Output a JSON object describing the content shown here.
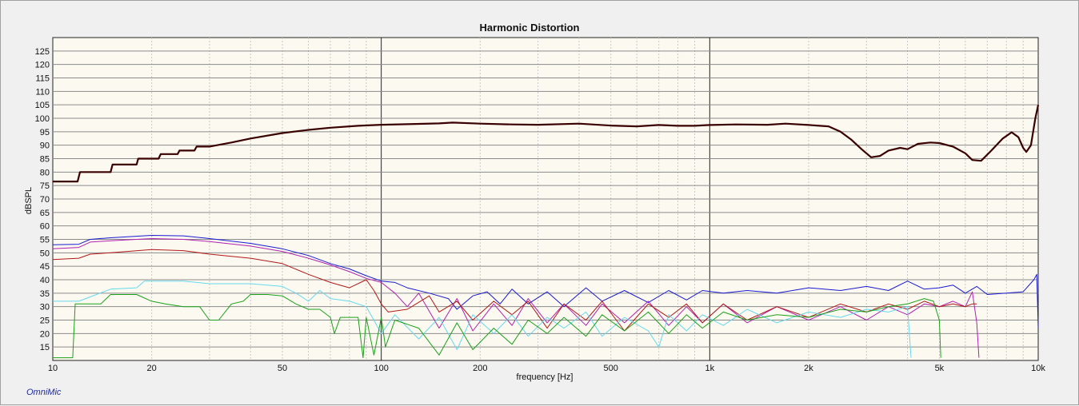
{
  "app": {
    "watermark": "OmniMic"
  },
  "chart_data": {
    "type": "line",
    "title": "Harmonic Distortion",
    "xlabel": "frequency [Hz]",
    "ylabel": "dBSPL",
    "xscale": "log",
    "xlim": [
      10,
      10000
    ],
    "ylim": [
      10,
      130
    ],
    "x_ticks": [
      10,
      20,
      50,
      100,
      200,
      500,
      1000,
      2000,
      5000,
      10000
    ],
    "x_tick_labels": [
      "10",
      "20",
      "50",
      "100",
      "200",
      "500",
      "1k",
      "2k",
      "5k",
      "10k"
    ],
    "y_ticks": [
      15,
      20,
      25,
      30,
      35,
      40,
      45,
      50,
      55,
      60,
      65,
      70,
      75,
      80,
      85,
      90,
      95,
      100,
      105,
      110,
      115,
      120,
      125
    ],
    "grid": true,
    "background": "#fcfaf0",
    "series": [
      {
        "color": "#3a0000",
        "width": 2.2,
        "points": [
          [
            10,
            76.5
          ],
          [
            11.9,
            76.5
          ],
          [
            12.1,
            80
          ],
          [
            15,
            80
          ],
          [
            15.2,
            82.8
          ],
          [
            18,
            82.8
          ],
          [
            18.2,
            85
          ],
          [
            21,
            85
          ],
          [
            21.3,
            86.7
          ],
          [
            24,
            86.7
          ],
          [
            24.3,
            88
          ],
          [
            27,
            88
          ],
          [
            27.4,
            89.5
          ],
          [
            30,
            89.5
          ],
          [
            35,
            91
          ],
          [
            40,
            92.5
          ],
          [
            50,
            94.5
          ],
          [
            60,
            95.7
          ],
          [
            70,
            96.5
          ],
          [
            85,
            97.2
          ],
          [
            100,
            97.6
          ],
          [
            120,
            97.8
          ],
          [
            150,
            98.1
          ],
          [
            165,
            98.4
          ],
          [
            200,
            98
          ],
          [
            250,
            97.7
          ],
          [
            300,
            97.6
          ],
          [
            400,
            98
          ],
          [
            500,
            97.3
          ],
          [
            600,
            97
          ],
          [
            700,
            97.5
          ],
          [
            800,
            97.2
          ],
          [
            900,
            97.2
          ],
          [
            1000,
            97.5
          ],
          [
            1200,
            97.7
          ],
          [
            1500,
            97.6
          ],
          [
            1700,
            98
          ],
          [
            2000,
            97.5
          ],
          [
            2300,
            97
          ],
          [
            2500,
            95
          ],
          [
            2700,
            92
          ],
          [
            2900,
            88.5
          ],
          [
            3100,
            85.5
          ],
          [
            3300,
            86
          ],
          [
            3500,
            88
          ],
          [
            3800,
            89
          ],
          [
            4000,
            88.5
          ],
          [
            4300,
            90.5
          ],
          [
            4700,
            91
          ],
          [
            5000,
            90.8
          ],
          [
            5500,
            89.5
          ],
          [
            6000,
            87
          ],
          [
            6300,
            84.5
          ],
          [
            6700,
            84.2
          ],
          [
            7200,
            88
          ],
          [
            7800,
            92.5
          ],
          [
            8300,
            94.8
          ],
          [
            8700,
            93
          ],
          [
            9000,
            89
          ],
          [
            9200,
            87.5
          ],
          [
            9500,
            90
          ],
          [
            9800,
            100
          ],
          [
            10000,
            105
          ]
        ]
      },
      {
        "color": "#1a1ad2",
        "width": 1,
        "points": [
          [
            10,
            53
          ],
          [
            12,
            53.2
          ],
          [
            13,
            55
          ],
          [
            15,
            55.6
          ],
          [
            20,
            56.5
          ],
          [
            25,
            56.3
          ],
          [
            30,
            55.3
          ],
          [
            40,
            53.5
          ],
          [
            50,
            51.5
          ],
          [
            60,
            49
          ],
          [
            70,
            46
          ],
          [
            80,
            44
          ],
          [
            90,
            41.5
          ],
          [
            100,
            39.5
          ],
          [
            110,
            39
          ],
          [
            120,
            37
          ],
          [
            140,
            35
          ],
          [
            160,
            33
          ],
          [
            170,
            29
          ],
          [
            190,
            34
          ],
          [
            210,
            35.5
          ],
          [
            230,
            31
          ],
          [
            250,
            36.5
          ],
          [
            280,
            31
          ],
          [
            320,
            35.5
          ],
          [
            360,
            30
          ],
          [
            420,
            37
          ],
          [
            470,
            32
          ],
          [
            550,
            36
          ],
          [
            650,
            31.5
          ],
          [
            750,
            36
          ],
          [
            850,
            32.5
          ],
          [
            950,
            36
          ],
          [
            1100,
            35
          ],
          [
            1300,
            36
          ],
          [
            1600,
            35
          ],
          [
            2000,
            37
          ],
          [
            2500,
            36
          ],
          [
            3000,
            37.5
          ],
          [
            3500,
            36
          ],
          [
            4000,
            39.5
          ],
          [
            4500,
            36.5
          ],
          [
            5000,
            37
          ],
          [
            5500,
            38
          ],
          [
            6000,
            35
          ],
          [
            6500,
            37.5
          ],
          [
            7000,
            34.5
          ],
          [
            8000,
            35
          ],
          [
            9000,
            35.5
          ],
          [
            9700,
            40
          ],
          [
            9900,
            42
          ],
          [
            10000,
            22
          ]
        ]
      },
      {
        "color": "#b020b0",
        "width": 1,
        "points": [
          [
            10,
            51.5
          ],
          [
            12,
            52
          ],
          [
            13,
            54
          ],
          [
            15,
            54.5
          ],
          [
            20,
            55.3
          ],
          [
            25,
            55
          ],
          [
            30,
            54.2
          ],
          [
            40,
            52.5
          ],
          [
            50,
            50.5
          ],
          [
            60,
            48
          ],
          [
            70,
            45.5
          ],
          [
            80,
            43
          ],
          [
            90,
            40.5
          ],
          [
            100,
            39
          ],
          [
            110,
            35
          ],
          [
            120,
            30
          ],
          [
            130,
            35
          ],
          [
            150,
            22
          ],
          [
            170,
            33
          ],
          [
            190,
            21
          ],
          [
            220,
            31
          ],
          [
            250,
            23
          ],
          [
            280,
            33
          ],
          [
            320,
            24
          ],
          [
            360,
            31
          ],
          [
            420,
            23
          ],
          [
            470,
            31
          ],
          [
            550,
            24
          ],
          [
            650,
            32
          ],
          [
            750,
            23
          ],
          [
            850,
            30
          ],
          [
            950,
            24
          ],
          [
            1100,
            31
          ],
          [
            1300,
            24
          ],
          [
            1600,
            30
          ],
          [
            2000,
            25
          ],
          [
            2500,
            30
          ],
          [
            3000,
            25
          ],
          [
            3500,
            30
          ],
          [
            4000,
            27
          ],
          [
            4500,
            31
          ],
          [
            5000,
            30
          ],
          [
            5500,
            32
          ],
          [
            6000,
            30
          ],
          [
            6300,
            35.5
          ],
          [
            6500,
            24
          ],
          [
            6600,
            11
          ]
        ]
      },
      {
        "color": "#b01818",
        "width": 1,
        "points": [
          [
            10,
            47.5
          ],
          [
            12,
            48
          ],
          [
            13,
            49.5
          ],
          [
            15,
            50
          ],
          [
            20,
            51.2
          ],
          [
            25,
            50.8
          ],
          [
            30,
            49.5
          ],
          [
            40,
            48
          ],
          [
            50,
            46
          ],
          [
            60,
            42
          ],
          [
            70,
            39
          ],
          [
            80,
            37
          ],
          [
            90,
            40
          ],
          [
            95,
            36
          ],
          [
            100,
            31
          ],
          [
            105,
            28
          ],
          [
            120,
            29
          ],
          [
            140,
            34
          ],
          [
            150,
            28
          ],
          [
            170,
            32
          ],
          [
            190,
            25
          ],
          [
            220,
            32
          ],
          [
            250,
            27
          ],
          [
            280,
            32
          ],
          [
            320,
            22
          ],
          [
            360,
            31
          ],
          [
            420,
            25
          ],
          [
            470,
            32
          ],
          [
            550,
            21
          ],
          [
            650,
            31
          ],
          [
            750,
            26
          ],
          [
            850,
            31
          ],
          [
            950,
            24
          ],
          [
            1100,
            31
          ],
          [
            1300,
            25
          ],
          [
            1600,
            30
          ],
          [
            2000,
            26
          ],
          [
            2500,
            31
          ],
          [
            3000,
            28
          ],
          [
            3500,
            31
          ],
          [
            4000,
            29
          ],
          [
            4500,
            32
          ],
          [
            5000,
            30
          ],
          [
            5500,
            31
          ],
          [
            6000,
            30
          ],
          [
            6300,
            31
          ],
          [
            6500,
            31
          ]
        ]
      },
      {
        "color": "#66d8ee",
        "width": 1,
        "points": [
          [
            10,
            32
          ],
          [
            12,
            32
          ],
          [
            15,
            36.5
          ],
          [
            18,
            37
          ],
          [
            19,
            39.5
          ],
          [
            25,
            39.5
          ],
          [
            30,
            38.5
          ],
          [
            40,
            38.5
          ],
          [
            50,
            37.5
          ],
          [
            55,
            35
          ],
          [
            60,
            32
          ],
          [
            65,
            36
          ],
          [
            70,
            33
          ],
          [
            80,
            32
          ],
          [
            90,
            30
          ],
          [
            100,
            20
          ],
          [
            110,
            27
          ],
          [
            130,
            18
          ],
          [
            150,
            26
          ],
          [
            170,
            14
          ],
          [
            190,
            27
          ],
          [
            220,
            20
          ],
          [
            250,
            27
          ],
          [
            280,
            19
          ],
          [
            320,
            26
          ],
          [
            360,
            22
          ],
          [
            420,
            28
          ],
          [
            470,
            19
          ],
          [
            550,
            26
          ],
          [
            650,
            21
          ],
          [
            700,
            15
          ],
          [
            750,
            27
          ],
          [
            850,
            21
          ],
          [
            950,
            27
          ],
          [
            1100,
            23
          ],
          [
            1300,
            29
          ],
          [
            1600,
            24
          ],
          [
            2000,
            28
          ],
          [
            2500,
            26
          ],
          [
            3000,
            29
          ],
          [
            3500,
            28
          ],
          [
            4000,
            30
          ],
          [
            4100,
            11
          ]
        ]
      },
      {
        "color": "#1aa01a",
        "width": 1,
        "points": [
          [
            10,
            11
          ],
          [
            11.5,
            11
          ],
          [
            11.7,
            31
          ],
          [
            14,
            31
          ],
          [
            15,
            34.5
          ],
          [
            18,
            34.5
          ],
          [
            20,
            32
          ],
          [
            22,
            31
          ],
          [
            25,
            30
          ],
          [
            28,
            30
          ],
          [
            30,
            25
          ],
          [
            32,
            25
          ],
          [
            35,
            31
          ],
          [
            38,
            32
          ],
          [
            40,
            34.5
          ],
          [
            45,
            34.5
          ],
          [
            50,
            34
          ],
          [
            55,
            31
          ],
          [
            60,
            29
          ],
          [
            65,
            29
          ],
          [
            70,
            26
          ],
          [
            72,
            20
          ],
          [
            75,
            26
          ],
          [
            85,
            26
          ],
          [
            88,
            11
          ],
          [
            90,
            26
          ],
          [
            95,
            12
          ],
          [
            100,
            26
          ],
          [
            103,
            15
          ],
          [
            110,
            25
          ],
          [
            130,
            22
          ],
          [
            150,
            12
          ],
          [
            170,
            24
          ],
          [
            190,
            14
          ],
          [
            220,
            22
          ],
          [
            250,
            16
          ],
          [
            280,
            25
          ],
          [
            320,
            20
          ],
          [
            360,
            26
          ],
          [
            420,
            19
          ],
          [
            470,
            27
          ],
          [
            550,
            21
          ],
          [
            650,
            28
          ],
          [
            750,
            20
          ],
          [
            850,
            27
          ],
          [
            950,
            22
          ],
          [
            1100,
            28
          ],
          [
            1300,
            25
          ],
          [
            1600,
            27
          ],
          [
            2000,
            26
          ],
          [
            2500,
            29
          ],
          [
            3000,
            28
          ],
          [
            3500,
            30
          ],
          [
            4000,
            31
          ],
          [
            4500,
            33
          ],
          [
            4800,
            32
          ],
          [
            5000,
            25
          ],
          [
            5050,
            11
          ]
        ]
      }
    ]
  }
}
